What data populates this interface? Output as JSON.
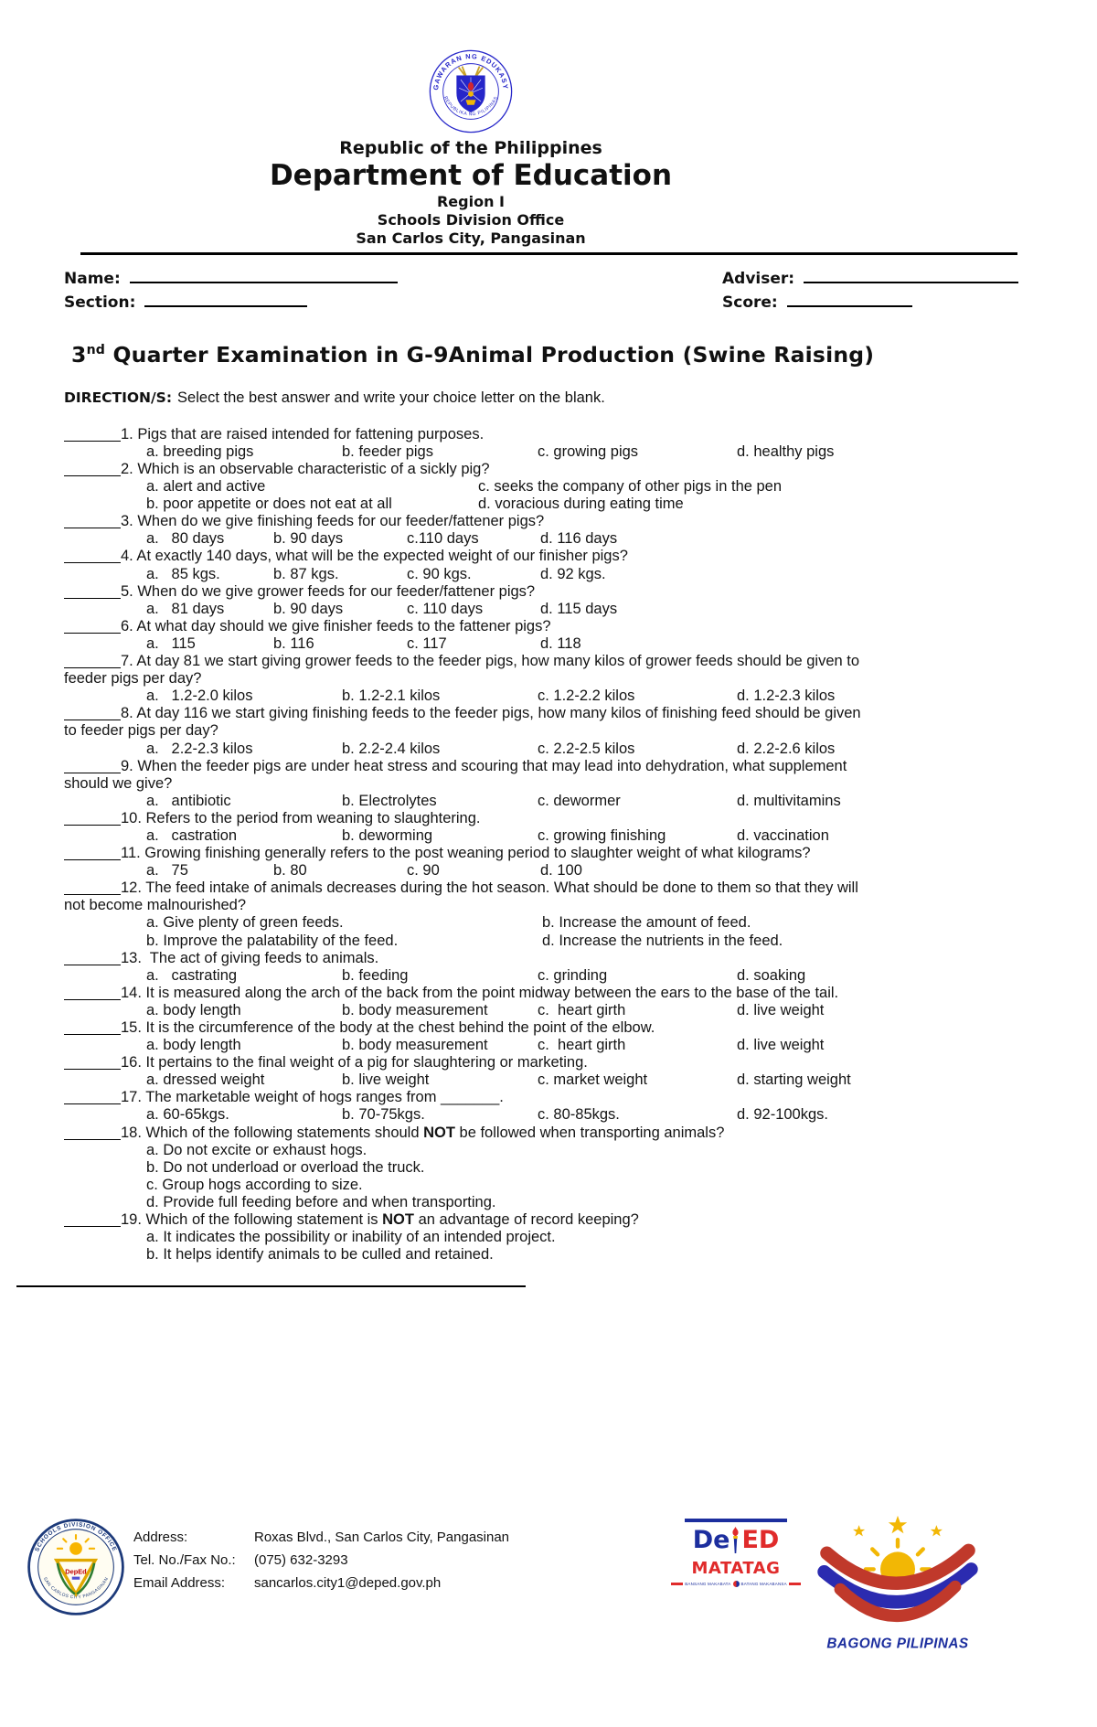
{
  "header": {
    "republic": "Republic of the Philippines",
    "department": "Department of Education",
    "region": "Region I",
    "office": "Schools Division Office",
    "city": "San Carlos City, Pangasinan"
  },
  "form": {
    "name": "Name:",
    "adviser": "Adviser:",
    "section": "Section:",
    "score": "Score:"
  },
  "title": {
    "num": "3",
    "sup": "nd",
    "rest": " Quarter Examination in G-9Animal Production (Swine Raising)"
  },
  "directions": {
    "label": "DIRECTION/S:",
    "text": "Select the best answer and write your choice letter on the blank."
  },
  "questions": [
    {
      "text": "1. Pigs that are raised intended for fattening purposes.",
      "layout": "row-wide",
      "options": [
        "a. breeding pigs",
        "b. feeder pigs",
        "c. growing pigs",
        "d. healthy pigs"
      ]
    },
    {
      "text": "2. Which is an observable characteristic of a sickly pig?",
      "layout": "cols2",
      "options": [
        "a. alert and active",
        "c. seeks the company of other pigs in the pen",
        "b. poor appetite or does not eat at all",
        "d. voracious during eating time"
      ]
    },
    {
      "text": "3. When do we give finishing feeds for our feeder/fattener pigs?",
      "layout": "row-narrow",
      "options": [
        "a.   80 days",
        "b. 90 days",
        "c.110 days",
        "d. 116 days"
      ]
    },
    {
      "text": "4. At exactly 140 days, what will be the expected weight of our finisher pigs?",
      "layout": "row-narrow",
      "options": [
        "a.   85 kgs.",
        "b. 87 kgs.",
        "c. 90 kgs.",
        "d. 92 kgs."
      ]
    },
    {
      "text": "5. When do we give grower feeds for our feeder/fattener pigs?",
      "layout": "row-narrow",
      "options": [
        "a.   81 days",
        "b. 90 days",
        "c. 110 days",
        "d. 115 days"
      ]
    },
    {
      "text": "6. At what day should we give finisher feeds to the fattener pigs?",
      "layout": "row-narrow",
      "options": [
        "a.   115",
        "b. 116",
        "c. 117",
        "d. 118"
      ]
    },
    {
      "text": "7. At day 81 we start giving grower feeds to the feeder pigs, how many kilos of grower feeds should be given to",
      "text2": "feeder pigs per day?",
      "layout": "row-wide",
      "options": [
        "a.   1.2-2.0 kilos",
        "b. 1.2-2.1 kilos",
        "c. 1.2-2.2 kilos",
        "d. 1.2-2.3 kilos"
      ]
    },
    {
      "text": "8. At day 116 we start giving finishing feeds to the feeder pigs, how many kilos of finishing feed should be given",
      "text2": "to feeder pigs per day?",
      "layout": "row-wide",
      "options": [
        "a.   2.2-2.3 kilos",
        "b. 2.2-2.4 kilos",
        "c. 2.2-2.5 kilos",
        "d. 2.2-2.6 kilos"
      ]
    },
    {
      "text": "9. When the feeder pigs are under heat stress and scouring that may lead into dehydration, what supplement",
      "text2": "should we give?",
      "layout": "row-wide",
      "options": [
        "a.   antibiotic",
        "b. Electrolytes",
        "c. dewormer",
        "d. multivitamins"
      ]
    },
    {
      "text": "10. Refers to the period from weaning to slaughtering.",
      "layout": "row-wide",
      "options": [
        "a.   castration",
        "b. deworming",
        "c. growing finishing",
        "d. vaccination"
      ]
    },
    {
      "text": "11. Growing finishing generally refers to the post weaning period to slaughter weight of what kilograms?",
      "layout": "row-narrow",
      "options": [
        "a.   75",
        "b. 80",
        "c. 90",
        "d. 100"
      ]
    },
    {
      "text": "12. The feed intake of animals decreases during the hot season. What should be done to them so that they will",
      "text2": "not become malnourished?",
      "layout": "cols2w",
      "options": [
        "a. Give plenty of green feeds.",
        "b. Increase the amount of feed.",
        "b. Improve the palatability of the feed.",
        "d. Increase the nutrients in the feed."
      ]
    },
    {
      "text": "13.  The act of giving feeds to animals.",
      "layout": "row-wide",
      "options": [
        "a.   castrating",
        "b. feeding",
        "c. grinding",
        "d. soaking"
      ]
    },
    {
      "text": "14. It is measured along the arch of the back from the point midway between the ears to the base of the tail.",
      "layout": "row-wide",
      "options": [
        "a. body length",
        "b. body measurement",
        "c.  heart girth",
        "d. live weight"
      ]
    },
    {
      "text": "15. It is the circumference of the body at the chest behind the point of the elbow.",
      "layout": "row-wide",
      "options": [
        "a. body length",
        "b. body measurement",
        "c.  heart girth",
        "d. live weight"
      ]
    },
    {
      "text": "16. It pertains to the final weight of a pig for slaughtering or marketing.",
      "layout": "row-wide",
      "options": [
        "a. dressed weight",
        "b. live weight",
        "c. market weight",
        "d. starting weight"
      ]
    },
    {
      "text": "17. The marketable weight of hogs ranges from _______.",
      "layout": "row-wide",
      "options": [
        "a. 60-65kgs.",
        "b. 70-75kgs.",
        "c. 80-85kgs.",
        "d. 92-100kgs."
      ]
    },
    {
      "pre": "18. Which of the following statements should ",
      "bold": "NOT",
      "post": " be followed when transporting animals?",
      "layout": "list",
      "options": [
        "a. Do not excite or exhaust hogs.",
        "b. Do not underload or overload the truck.",
        "c. Group hogs according to size.",
        "d. Provide full feeding before and when transporting."
      ]
    },
    {
      "pre": "19. Which of the following statement is ",
      "bold": "NOT",
      "post": " an advantage of record keeping?",
      "layout": "list",
      "options": [
        "a. It indicates the possibility or inability of an intended project.",
        "b. It helps identify animals to be culled and retained."
      ]
    }
  ],
  "footer": {
    "address_label": "Address:",
    "address_value": "Roxas Blvd., San Carlos City, Pangasinan",
    "tel_label": "Tel. No./Fax No.:",
    "tel_value": "(075) 632-3293",
    "email_label": "Email Address:",
    "email_value": "sancarlos.city1@deped.gov.ph"
  },
  "logos": {
    "seal_top_arc": "KAGAWARAN NG EDUKASYON",
    "seal_bottom_arc": "REPUBLIKA NG PILIPINAS",
    "division_top_arc": "SCHOOLS DIVISION OFFICE",
    "division_bottom_arc": "SAN CARLOS CITY PANGASINAN",
    "division_center": "DepEd",
    "deped_de": "De",
    "deped_ed": "ED",
    "matatag": "MATATAG",
    "tagline_left": "BANSANG MAKABATA",
    "tagline_right": "BATANG MAKABANSA",
    "bagong": "BAGONG PILIPINAS"
  },
  "colors": {
    "navy": "#1c2e9e",
    "seal_blue": "#2626c9",
    "red": "#e02b2b",
    "gold": "#f2b705",
    "green": "#2e7d32"
  }
}
